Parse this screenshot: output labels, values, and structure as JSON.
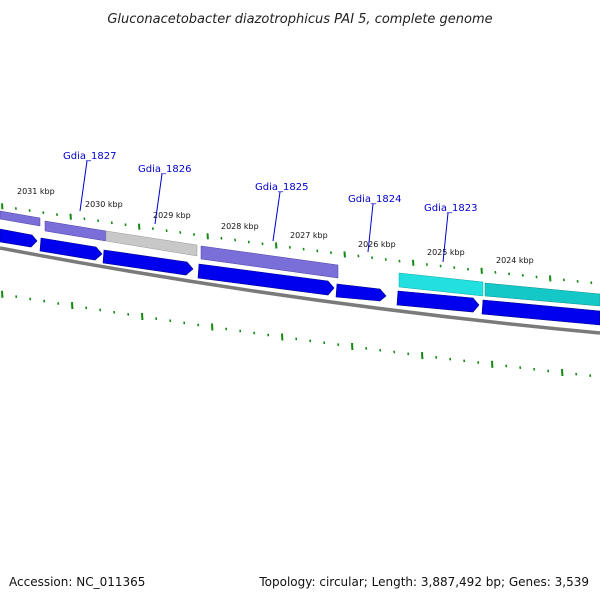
{
  "title": "Gluconacetobacter diazotrophicus PAI 5, complete genome",
  "footer": {
    "accession": "Accession: NC_011365",
    "topology": "Topology: circular; Length: 3,887,492 bp; Genes: 3,539"
  },
  "colors": {
    "cds": "#0000ee",
    "cog_purple": "#7a6fd8",
    "cog_grey": "#c8c8c8",
    "cog_cyan": "#22e0e0",
    "cog_teal": "#15c8c8",
    "backbone": "#808080",
    "tick": "#128a12",
    "gene_label": "#0000cc"
  },
  "kbp_labels": [
    "2031 kbp",
    "2030 kbp",
    "2029 kbp",
    "2028 kbp",
    "2027 kbp",
    "2026 kbp",
    "2025 kbp",
    "2024 kbp"
  ],
  "genes": [
    {
      "name": "Gdia_1827"
    },
    {
      "name": "Gdia_1826"
    },
    {
      "name": "Gdia_1825"
    },
    {
      "name": "Gdia_1824"
    },
    {
      "name": "Gdia_1823"
    }
  ]
}
